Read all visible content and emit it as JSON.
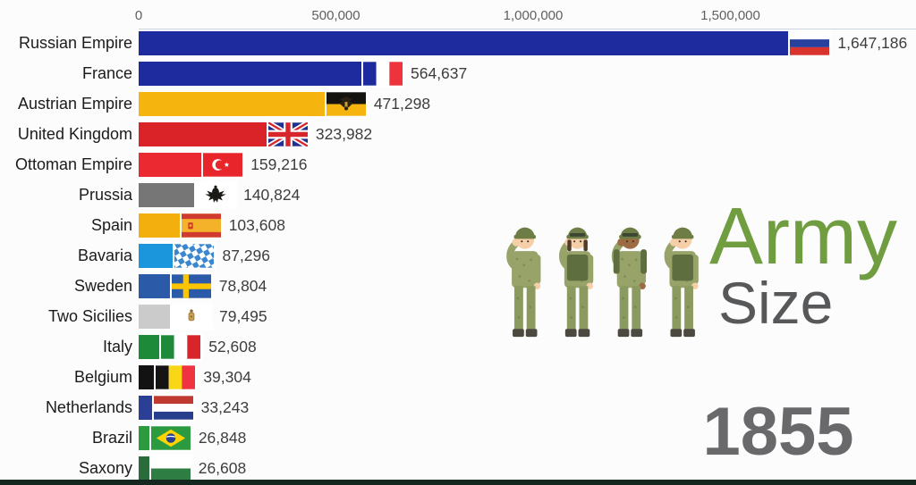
{
  "chart_data": {
    "type": "bar",
    "orientation": "horizontal",
    "title": "Army Size",
    "year": "1855",
    "xlabel": "",
    "ylabel": "",
    "xlim": [
      0,
      1950000
    ],
    "grid": false,
    "legend": "none",
    "x_ticks": [
      "0",
      "500,000",
      "1,000,000",
      "1,500,000"
    ],
    "x_tick_values": [
      0,
      500000,
      1000000,
      1500000
    ],
    "categories": [
      "Russian Empire",
      "France",
      "Austrian Empire",
      "United Kingdom",
      "Ottoman Empire",
      "Prussia",
      "Spain",
      "Bavaria",
      "Sweden",
      "Two Sicilies",
      "Italy",
      "Belgium",
      "Netherlands",
      "Brazil",
      "Saxony"
    ],
    "values": [
      1647186,
      564637,
      471298,
      323982,
      159216,
      140824,
      103608,
      87296,
      78804,
      79495,
      52608,
      39304,
      33243,
      26848,
      26608
    ],
    "rows": [
      {
        "label": "Russian Empire",
        "value": 1647186,
        "value_label": "1,647,186",
        "flag": "russia",
        "color": "#1e2b9e"
      },
      {
        "label": "France",
        "value": 564637,
        "value_label": "564,637",
        "flag": "france",
        "color": "#1e2b9e"
      },
      {
        "label": "Austrian Empire",
        "value": 471298,
        "value_label": "471,298",
        "flag": "austrian_empire",
        "color": "#f6b40e"
      },
      {
        "label": "United Kingdom",
        "value": 323982,
        "value_label": "323,982",
        "flag": "uk",
        "color": "#d92328"
      },
      {
        "label": "Ottoman Empire",
        "value": 159216,
        "value_label": "159,216",
        "flag": "ottoman",
        "color": "#ea2a30"
      },
      {
        "label": "Prussia",
        "value": 140824,
        "value_label": "140,824",
        "flag": "prussia",
        "color": "#767676"
      },
      {
        "label": "Spain",
        "value": 103608,
        "value_label": "103,608",
        "flag": "spain",
        "color": "#f2af0d"
      },
      {
        "label": "Bavaria",
        "value": 87296,
        "value_label": "87,296",
        "flag": "bavaria",
        "color": "#1b96dc"
      },
      {
        "label": "Sweden",
        "value": 78804,
        "value_label": "78,804",
        "flag": "sweden",
        "color": "#2b5ba8"
      },
      {
        "label": "Two Sicilies",
        "value": 79495,
        "value_label": "79,495",
        "flag": "two_sicilies",
        "color": "#cbcbcb"
      },
      {
        "label": "Italy",
        "value": 52608,
        "value_label": "52,608",
        "flag": "italy",
        "color": "#1d8a3a"
      },
      {
        "label": "Belgium",
        "value": 39304,
        "value_label": "39,304",
        "flag": "belgium",
        "color": "#121212"
      },
      {
        "label": "Netherlands",
        "value": 33243,
        "value_label": "33,243",
        "flag": "netherlands",
        "color": "#2b3f96"
      },
      {
        "label": "Brazil",
        "value": 26848,
        "value_label": "26,848",
        "flag": "brazil",
        "color": "#2c9a3f"
      },
      {
        "label": "Saxony",
        "value": 26608,
        "value_label": "26,608",
        "flag": "saxony",
        "color": "#2a6b3c"
      }
    ]
  },
  "logo": {
    "illustration": "four-saluting-soldiers",
    "line1": "Army",
    "line2": "Size",
    "line1_color": "#6f9d3f",
    "line2_color": "#57585a"
  },
  "year": {
    "label": "1855",
    "color": "#69696c"
  }
}
